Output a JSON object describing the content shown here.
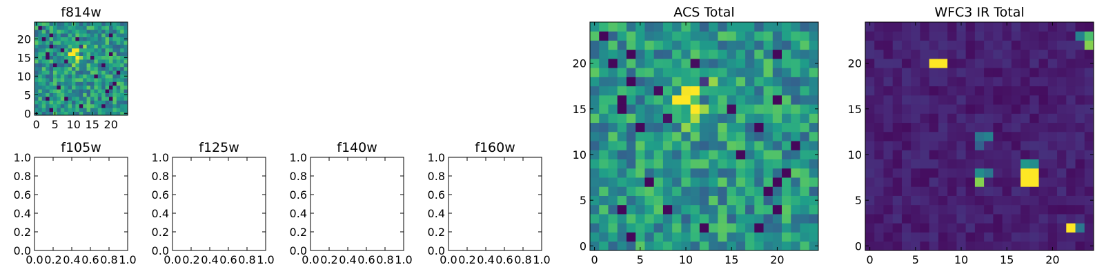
{
  "chart_data": [
    {
      "id": "f814w",
      "type": "heatmap",
      "title": "f814w",
      "colormap": "viridis",
      "xticks": [
        "0",
        "5",
        "10",
        "15",
        "20"
      ],
      "yticks": [
        "0",
        "5",
        "10",
        "15",
        "20"
      ],
      "grid_size": 25,
      "source_peak": {
        "x": 11,
        "y": 16
      },
      "noise_seed": 7
    },
    {
      "id": "f105w",
      "type": "heatmap",
      "title": "f105w",
      "empty": true,
      "xticks": [
        "0.0",
        "0.2",
        "0.4",
        "0.6",
        "0.8",
        "1.0"
      ],
      "yticks": [
        "0.0",
        "0.2",
        "0.4",
        "0.6",
        "0.8",
        "1.0"
      ]
    },
    {
      "id": "f125w",
      "type": "heatmap",
      "title": "f125w",
      "empty": true,
      "xticks": [
        "0.0",
        "0.2",
        "0.4",
        "0.6",
        "0.8",
        "1.0"
      ],
      "yticks": [
        "0.0",
        "0.2",
        "0.4",
        "0.6",
        "0.8",
        "1.0"
      ]
    },
    {
      "id": "f140w",
      "type": "heatmap",
      "title": "f140w",
      "empty": true,
      "xticks": [
        "0.0",
        "0.2",
        "0.4",
        "0.6",
        "0.8",
        "1.0"
      ],
      "yticks": [
        "0.0",
        "0.2",
        "0.4",
        "0.6",
        "0.8",
        "1.0"
      ]
    },
    {
      "id": "f160w",
      "type": "heatmap",
      "title": "f160w",
      "empty": true,
      "xticks": [
        "0.0",
        "0.2",
        "0.4",
        "0.6",
        "0.8",
        "1.0"
      ],
      "yticks": [
        "0.0",
        "0.2",
        "0.4",
        "0.6",
        "0.8",
        "1.0"
      ]
    },
    {
      "id": "acs-total",
      "type": "heatmap",
      "title": "ACS Total",
      "colormap": "viridis",
      "xticks": [
        "0",
        "5",
        "10",
        "15",
        "20"
      ],
      "yticks": [
        "0",
        "5",
        "10",
        "15",
        "20"
      ],
      "grid_size": 25,
      "source_peak": {
        "x": 11,
        "y": 16
      },
      "noise_seed": 7
    },
    {
      "id": "wfc3-ir-total",
      "type": "heatmap",
      "title": "WFC3 IR Total",
      "colormap": "viridis",
      "xticks": [
        "0",
        "5",
        "10",
        "15",
        "20"
      ],
      "yticks": [
        "0",
        "5",
        "10",
        "15",
        "20"
      ],
      "grid_size": 25,
      "background_level": 0.1,
      "hot_pixels": [
        {
          "x": 7,
          "y": 20,
          "value": 1.0
        },
        {
          "x": 8,
          "y": 20,
          "value": 1.0
        },
        {
          "x": 12,
          "y": 12,
          "value": 0.45
        },
        {
          "x": 13,
          "y": 12,
          "value": 0.5
        },
        {
          "x": 12,
          "y": 11,
          "value": 0.35
        },
        {
          "x": 12,
          "y": 8,
          "value": 0.55
        },
        {
          "x": 13,
          "y": 8,
          "value": 0.45
        },
        {
          "x": 12,
          "y": 7,
          "value": 0.9
        },
        {
          "x": 17,
          "y": 9,
          "value": 0.6
        },
        {
          "x": 18,
          "y": 9,
          "value": 0.55
        },
        {
          "x": 17,
          "y": 8,
          "value": 1.0
        },
        {
          "x": 18,
          "y": 8,
          "value": 1.0
        },
        {
          "x": 17,
          "y": 7,
          "value": 1.0
        },
        {
          "x": 18,
          "y": 7,
          "value": 1.0
        },
        {
          "x": 22,
          "y": 2,
          "value": 1.0
        },
        {
          "x": 23,
          "y": 2,
          "value": 0.45
        },
        {
          "x": 23,
          "y": 23,
          "value": 0.5
        },
        {
          "x": 24,
          "y": 23,
          "value": 0.8
        },
        {
          "x": 24,
          "y": 22,
          "value": 0.9
        }
      ],
      "noise_seed": 11
    }
  ]
}
